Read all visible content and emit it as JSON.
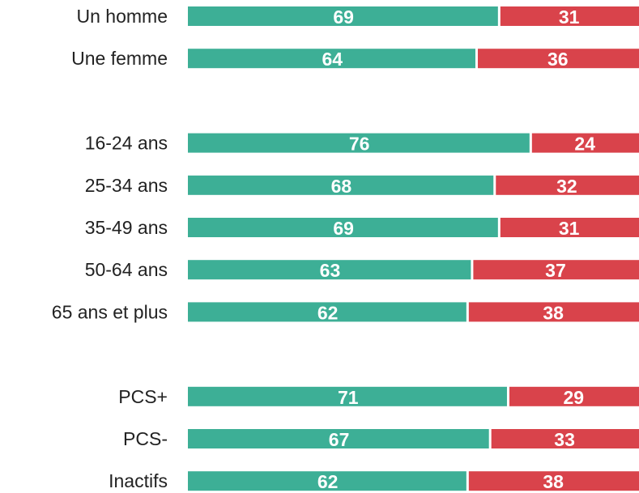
{
  "chart_data": {
    "type": "stacked-bar-horizontal",
    "categories": [
      "Un homme",
      "Une femme",
      null,
      "16-24 ans",
      "25-34 ans",
      "35-49 ans",
      "50-64 ans",
      "65 ans et plus",
      null,
      "PCS+",
      "PCS-",
      "Inactifs"
    ],
    "series": [
      {
        "color": "#3daf96",
        "values": [
          69,
          64,
          null,
          76,
          68,
          69,
          63,
          62,
          null,
          71,
          67,
          62
        ]
      },
      {
        "color": "#d9434b",
        "values": [
          31,
          36,
          null,
          24,
          32,
          31,
          37,
          38,
          null,
          29,
          33,
          38
        ]
      }
    ]
  }
}
